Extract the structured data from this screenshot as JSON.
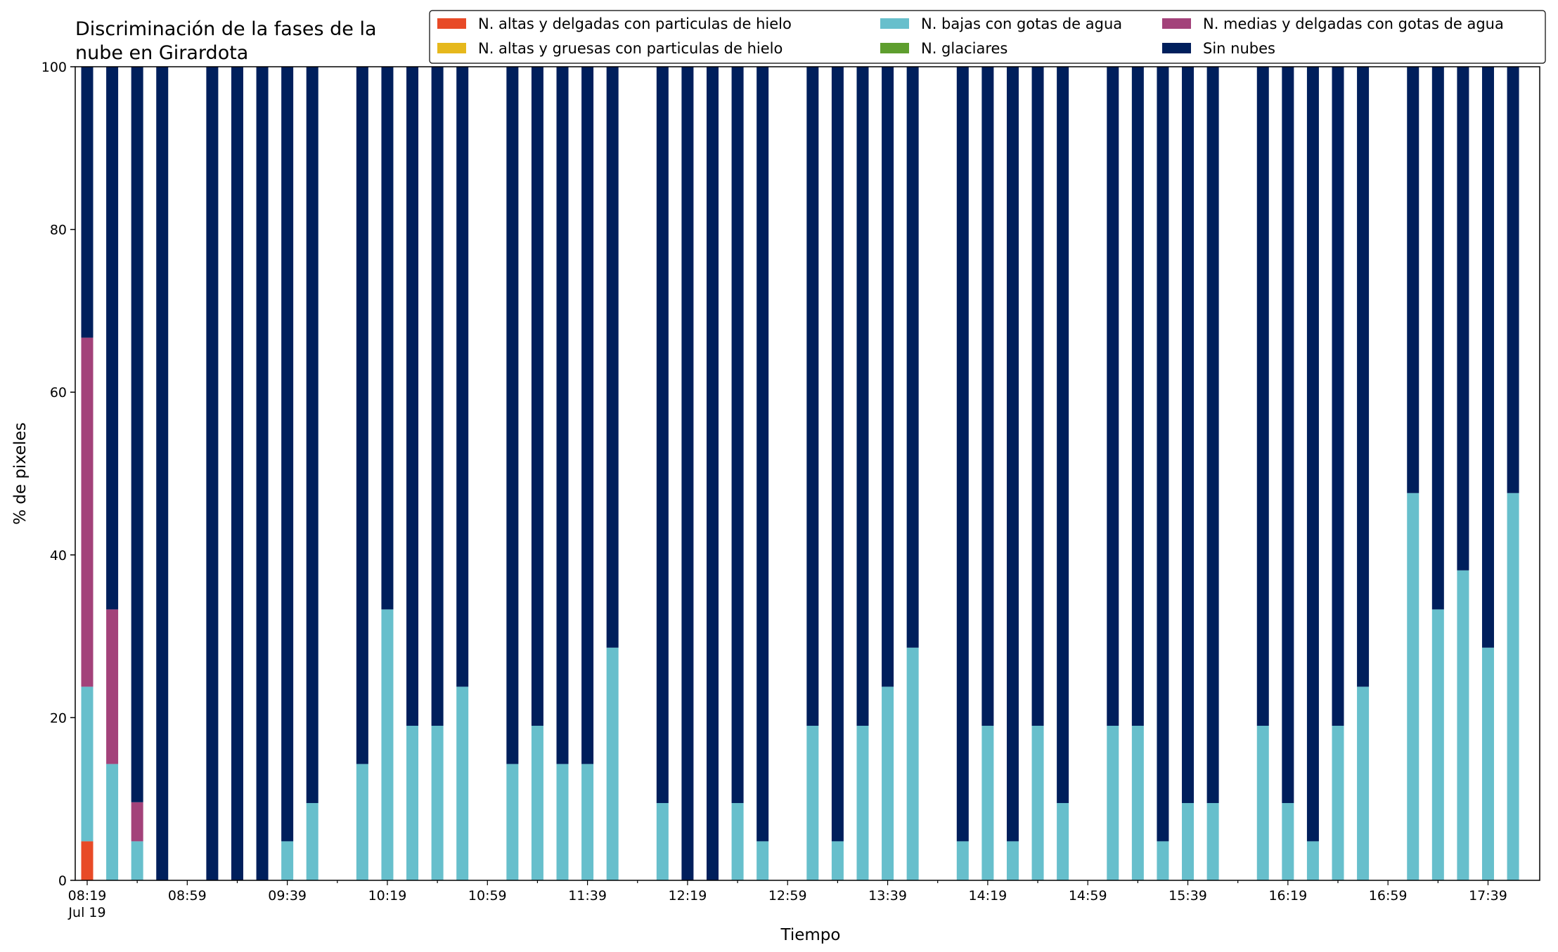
{
  "chart_data": {
    "type": "bar",
    "stacked": true,
    "title_lines": [
      "Discriminación de la fases de la",
      "nube en Girardota"
    ],
    "xlabel": "Tiempo",
    "ylabel": "% de pixeles",
    "ylim": [
      0,
      100
    ],
    "yticks": [
      "0",
      "20",
      "40",
      "60",
      "80",
      "100"
    ],
    "xticks": [
      {
        "label": "08:19",
        "sublabel": "Jul 19",
        "slot": 0
      },
      {
        "label": "08:59",
        "slot": 4
      },
      {
        "label": "09:39",
        "slot": 8
      },
      {
        "label": "10:19",
        "slot": 12
      },
      {
        "label": "10:59",
        "slot": 16
      },
      {
        "label": "11:39",
        "slot": 20
      },
      {
        "label": "12:19",
        "slot": 24
      },
      {
        "label": "12:59",
        "slot": 28
      },
      {
        "label": "13:39",
        "slot": 32
      },
      {
        "label": "14:19",
        "slot": 36
      },
      {
        "label": "14:59",
        "slot": 40
      },
      {
        "label": "15:39",
        "slot": 44
      },
      {
        "label": "16:19",
        "slot": 48
      },
      {
        "label": "16:59",
        "slot": 52
      },
      {
        "label": "17:39",
        "slot": 56
      }
    ],
    "slots_total": 58,
    "legend_position": "upper-right",
    "series": [
      {
        "name": "N. altas y delgadas con particulas de hielo",
        "color": "#e84a27"
      },
      {
        "name": "N. altas y gruesas con particulas de hielo",
        "color": "#e6b81c"
      },
      {
        "name": "N. bajas con gotas de agua",
        "color": "#67bfcc"
      },
      {
        "name": "N. glaciares",
        "color": "#5e9e2e"
      },
      {
        "name": "N. medias y delgadas con gotas de agua",
        "color": "#a3427a"
      },
      {
        "name": "Sin nubes",
        "color": "#001f5c"
      }
    ],
    "bars": [
      {
        "slot": 0,
        "values": [
          4.8,
          0,
          19.0,
          0,
          42.9,
          33.3
        ]
      },
      {
        "slot": 1,
        "values": [
          0,
          0,
          14.3,
          0,
          19.0,
          66.7
        ]
      },
      {
        "slot": 2,
        "values": [
          0,
          0,
          4.8,
          0,
          4.8,
          90.4
        ]
      },
      {
        "slot": 3,
        "values": [
          0,
          0,
          0,
          0,
          0,
          100
        ]
      },
      {
        "slot": 5,
        "values": [
          0,
          0,
          0,
          0,
          0,
          100
        ]
      },
      {
        "slot": 6,
        "values": [
          0,
          0,
          0,
          0,
          0,
          100
        ]
      },
      {
        "slot": 7,
        "values": [
          0,
          0,
          0,
          0,
          0,
          100
        ]
      },
      {
        "slot": 8,
        "values": [
          0,
          0,
          4.8,
          0,
          0,
          95.2
        ]
      },
      {
        "slot": 9,
        "values": [
          0,
          0,
          9.5,
          0,
          0,
          90.5
        ]
      },
      {
        "slot": 11,
        "values": [
          0,
          0,
          14.3,
          0,
          0,
          85.7
        ]
      },
      {
        "slot": 12,
        "values": [
          0,
          0,
          33.3,
          0,
          0,
          66.7
        ]
      },
      {
        "slot": 13,
        "values": [
          0,
          0,
          19.0,
          0,
          0,
          81.0
        ]
      },
      {
        "slot": 14,
        "values": [
          0,
          0,
          19.0,
          0,
          0,
          81.0
        ]
      },
      {
        "slot": 15,
        "values": [
          0,
          0,
          23.8,
          0,
          0,
          76.2
        ]
      },
      {
        "slot": 17,
        "values": [
          0,
          0,
          14.3,
          0,
          0,
          85.7
        ]
      },
      {
        "slot": 18,
        "values": [
          0,
          0,
          19.0,
          0,
          0,
          81.0
        ]
      },
      {
        "slot": 19,
        "values": [
          0,
          0,
          14.3,
          0,
          0,
          85.7
        ]
      },
      {
        "slot": 20,
        "values": [
          0,
          0,
          14.3,
          0,
          0,
          85.7
        ]
      },
      {
        "slot": 21,
        "values": [
          0,
          0,
          28.6,
          0,
          0,
          71.4
        ]
      },
      {
        "slot": 23,
        "values": [
          0,
          0,
          9.5,
          0,
          0,
          90.5
        ]
      },
      {
        "slot": 24,
        "values": [
          0,
          0,
          0,
          0,
          0,
          100
        ]
      },
      {
        "slot": 25,
        "values": [
          0,
          0,
          0,
          0,
          0,
          100
        ]
      },
      {
        "slot": 26,
        "values": [
          0,
          0,
          9.5,
          0,
          0,
          90.5
        ]
      },
      {
        "slot": 27,
        "values": [
          0,
          0,
          4.8,
          0,
          0,
          95.2
        ]
      },
      {
        "slot": 29,
        "values": [
          0,
          0,
          19.0,
          0,
          0,
          81.0
        ]
      },
      {
        "slot": 30,
        "values": [
          0,
          0,
          4.8,
          0,
          0,
          95.2
        ]
      },
      {
        "slot": 31,
        "values": [
          0,
          0,
          19.0,
          0,
          0,
          81.0
        ]
      },
      {
        "slot": 32,
        "values": [
          0,
          0,
          23.8,
          0,
          0,
          76.2
        ]
      },
      {
        "slot": 33,
        "values": [
          0,
          0,
          28.6,
          0,
          0,
          71.4
        ]
      },
      {
        "slot": 35,
        "values": [
          0,
          0,
          4.8,
          0,
          0,
          95.2
        ]
      },
      {
        "slot": 36,
        "values": [
          0,
          0,
          19.0,
          0,
          0,
          81.0
        ]
      },
      {
        "slot": 37,
        "values": [
          0,
          0,
          4.8,
          0,
          0,
          95.2
        ]
      },
      {
        "slot": 38,
        "values": [
          0,
          0,
          19.0,
          0,
          0,
          81.0
        ]
      },
      {
        "slot": 39,
        "values": [
          0,
          0,
          9.5,
          0,
          0,
          90.5
        ]
      },
      {
        "slot": 41,
        "values": [
          0,
          0,
          19.0,
          0,
          0,
          81.0
        ]
      },
      {
        "slot": 42,
        "values": [
          0,
          0,
          19.0,
          0,
          0,
          81.0
        ]
      },
      {
        "slot": 43,
        "values": [
          0,
          0,
          4.8,
          0,
          0,
          95.2
        ]
      },
      {
        "slot": 44,
        "values": [
          0,
          0,
          9.5,
          0,
          0,
          90.5
        ]
      },
      {
        "slot": 45,
        "values": [
          0,
          0,
          9.5,
          0,
          0,
          90.5
        ]
      },
      {
        "slot": 47,
        "values": [
          0,
          0,
          19.0,
          0,
          0,
          81.0
        ]
      },
      {
        "slot": 48,
        "values": [
          0,
          0,
          9.5,
          0,
          0,
          90.5
        ]
      },
      {
        "slot": 49,
        "values": [
          0,
          0,
          4.8,
          0,
          0,
          95.2
        ]
      },
      {
        "slot": 50,
        "values": [
          0,
          0,
          19.0,
          0,
          0,
          81.0
        ]
      },
      {
        "slot": 51,
        "values": [
          0,
          0,
          23.8,
          0,
          0,
          76.2
        ]
      },
      {
        "slot": 53,
        "values": [
          0,
          0,
          47.6,
          0,
          0,
          52.4
        ]
      },
      {
        "slot": 54,
        "values": [
          0,
          0,
          33.3,
          0,
          0,
          66.7
        ]
      },
      {
        "slot": 55,
        "values": [
          0,
          0,
          38.1,
          0,
          0,
          61.9
        ]
      },
      {
        "slot": 56,
        "values": [
          0,
          0,
          28.6,
          0,
          0,
          71.4
        ]
      },
      {
        "slot": 57,
        "values": [
          0,
          0,
          47.6,
          0,
          0,
          52.4
        ]
      }
    ]
  }
}
